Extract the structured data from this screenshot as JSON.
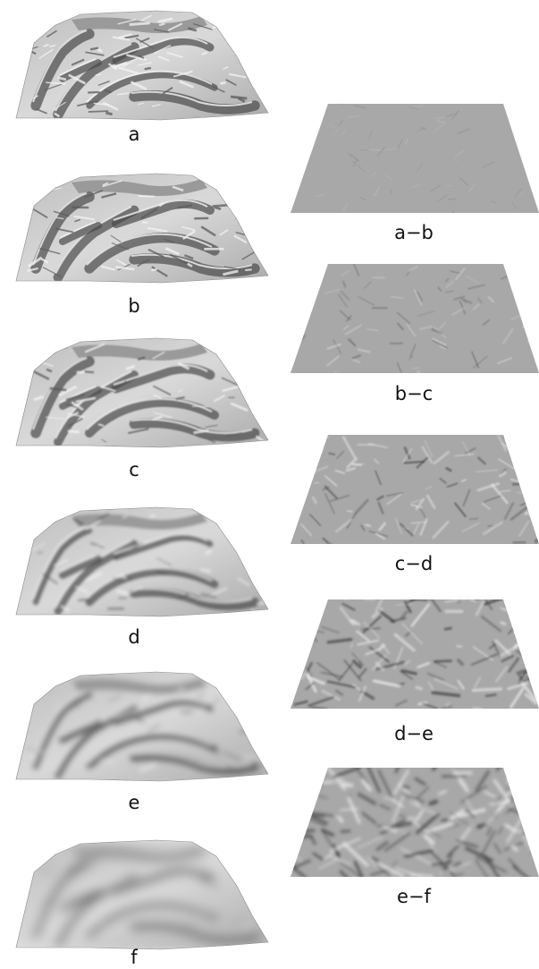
{
  "figure": {
    "terrain_labels": [
      "a",
      "b",
      "c",
      "d",
      "e",
      "f"
    ],
    "difference_labels": [
      "a−b",
      "b−c",
      "c−d",
      "d−e",
      "e−f"
    ]
  }
}
